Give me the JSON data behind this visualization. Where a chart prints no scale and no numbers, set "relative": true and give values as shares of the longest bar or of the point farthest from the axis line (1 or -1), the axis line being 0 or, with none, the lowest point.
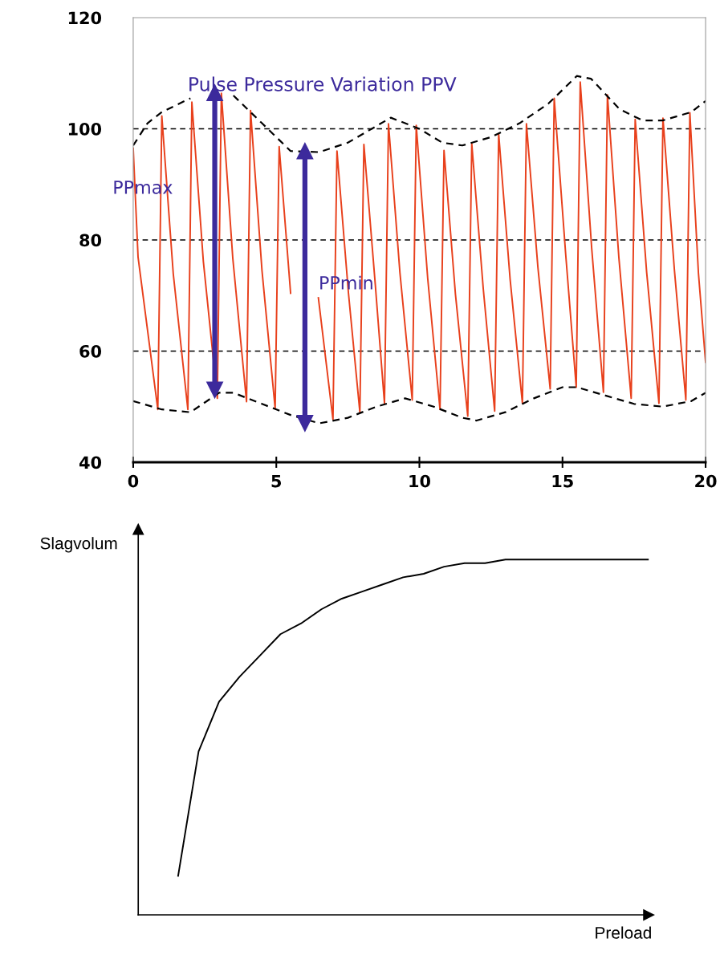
{
  "chart_data": [
    {
      "type": "line",
      "title": "Pulse Pressure Variation PPV",
      "xlim": [
        0,
        20
      ],
      "xticks": [
        0,
        5,
        10,
        15,
        20
      ],
      "ylim": [
        40,
        120
      ],
      "yticks": [
        40,
        60,
        80,
        100,
        120
      ],
      "grid": false,
      "legend": false,
      "series": [
        {
          "color": "#e8401c",
          "x": [
            0,
            0.17,
            0.86,
            1.0,
            1.4,
            1.91,
            2.05,
            2.45,
            2.94,
            3.08,
            3.48,
            3.96,
            4.1,
            4.5,
            4.96,
            5.1,
            5.5,
            5.93,
            6.07,
            6.47,
            6.98,
            7.12,
            7.52,
            7.92,
            8.06,
            8.46,
            8.78,
            8.92,
            9.32,
            9.75,
            9.89,
            10.29,
            10.72,
            10.86,
            11.26,
            11.69,
            11.83,
            12.23,
            12.63,
            12.77,
            13.17,
            13.6,
            13.74,
            14.14,
            14.57,
            14.71,
            15.11,
            15.48,
            15.62,
            16.02,
            16.43,
            16.57,
            16.97,
            17.4,
            17.54,
            17.94,
            18.37,
            18.51,
            18.91,
            19.31,
            19.45,
            19.75,
            20
          ],
          "values": [
            96.5,
            76.9,
            49.5,
            102.3,
            73.9,
            49.5,
            104.8,
            76.2,
            51.5,
            106.4,
            76.7,
            50.9,
            103.3,
            74.5,
            49.7,
            96.8,
            70.4,
            null,
            null,
            69.6,
            47.7,
            96,
            70.5,
            49,
            97.2,
            71.9,
            50.6,
            100.9,
            74.1,
            51.2,
            100.6,
            73.1,
            49.5,
            96.1,
            70.2,
            48.3,
            97.3,
            71.3,
            49.2,
            99.1,
            72.9,
            50.6,
            100.9,
            75.1,
            53.2,
            105.5,
            77.5,
            53.5,
            108.4,
            78.5,
            52.6,
            106.1,
            76.8,
            51.5,
            101.7,
            74.2,
            50.6,
            101.9,
            74.6,
            51.2,
            102.9,
            74,
            58
          ]
        },
        {
          "color": "#000000",
          "line_style": "dashed",
          "x": [
            0,
            0.5,
            1,
            2,
            2.8,
            3.5,
            4.5,
            5.5,
            6.5,
            7.5,
            8.5,
            9,
            10,
            10.8,
            11.5,
            12.5,
            13.5,
            14.5,
            15.5,
            16,
            17,
            17.8,
            18.5,
            19.5,
            20
          ],
          "values": [
            97,
            101,
            103,
            105.5,
            null,
            106,
            101,
            96,
            95.8,
            97.5,
            100.5,
            102,
            100,
            97.5,
            97,
            98.5,
            101,
            104.5,
            109.5,
            109,
            103.5,
            101.5,
            101.5,
            103,
            105
          ]
        },
        {
          "color": "#000000",
          "line_style": "dashed",
          "x": [
            0,
            1,
            2,
            3,
            3.5,
            4.5,
            5.5,
            6.5,
            7.5,
            8.5,
            9.5,
            10.5,
            11.5,
            12,
            13,
            14,
            15,
            15.5,
            16.5,
            17.5,
            18.5,
            19.5,
            20
          ],
          "values": [
            51,
            49.5,
            49,
            52.5,
            52.5,
            50.5,
            48.5,
            47,
            48,
            50,
            51.5,
            50,
            48,
            47.5,
            49,
            51.5,
            53.5,
            53.5,
            52,
            50.5,
            50,
            51,
            52.5
          ]
        },
        {
          "color": "#3c2a9c",
          "marker": "triangle",
          "x": [
            2.85,
            2.85
          ],
          "values": [
            53,
            106.5
          ]
        },
        {
          "color": "#3c2a9c",
          "marker": "triangle",
          "x": [
            6,
            6
          ],
          "values": [
            47,
            96
          ]
        }
      ],
      "ref_lines": [
        {
          "axis": "y",
          "value": 100,
          "color": "#000000",
          "line_style": "dashed"
        },
        {
          "axis": "y",
          "value": 80,
          "color": "#000000",
          "line_style": "dashed"
        },
        {
          "axis": "y",
          "value": 60,
          "color": "#000000",
          "line_style": "dashed"
        }
      ],
      "annotations": [
        "PPmax",
        "PPmin"
      ]
    },
    {
      "type": "line",
      "relative": true,
      "xlabel": "Preload",
      "ylabel": "Slagvolum",
      "grid": false,
      "legend": false,
      "categories": [
        null,
        null,
        null,
        null,
        null,
        null,
        null,
        null,
        null,
        null,
        null,
        null,
        null,
        null,
        null,
        null,
        null,
        null,
        null,
        null,
        null,
        null,
        null,
        null
      ],
      "series": [
        {
          "color": "#000000",
          "values": [
            0.11,
            0.46,
            0.6,
            0.67,
            0.73,
            0.79,
            0.82,
            0.86,
            0.89,
            0.91,
            0.93,
            0.95,
            0.96,
            0.98,
            0.99,
            0.99,
            1,
            1,
            1,
            1,
            1,
            1,
            1,
            1
          ]
        }
      ]
    }
  ]
}
